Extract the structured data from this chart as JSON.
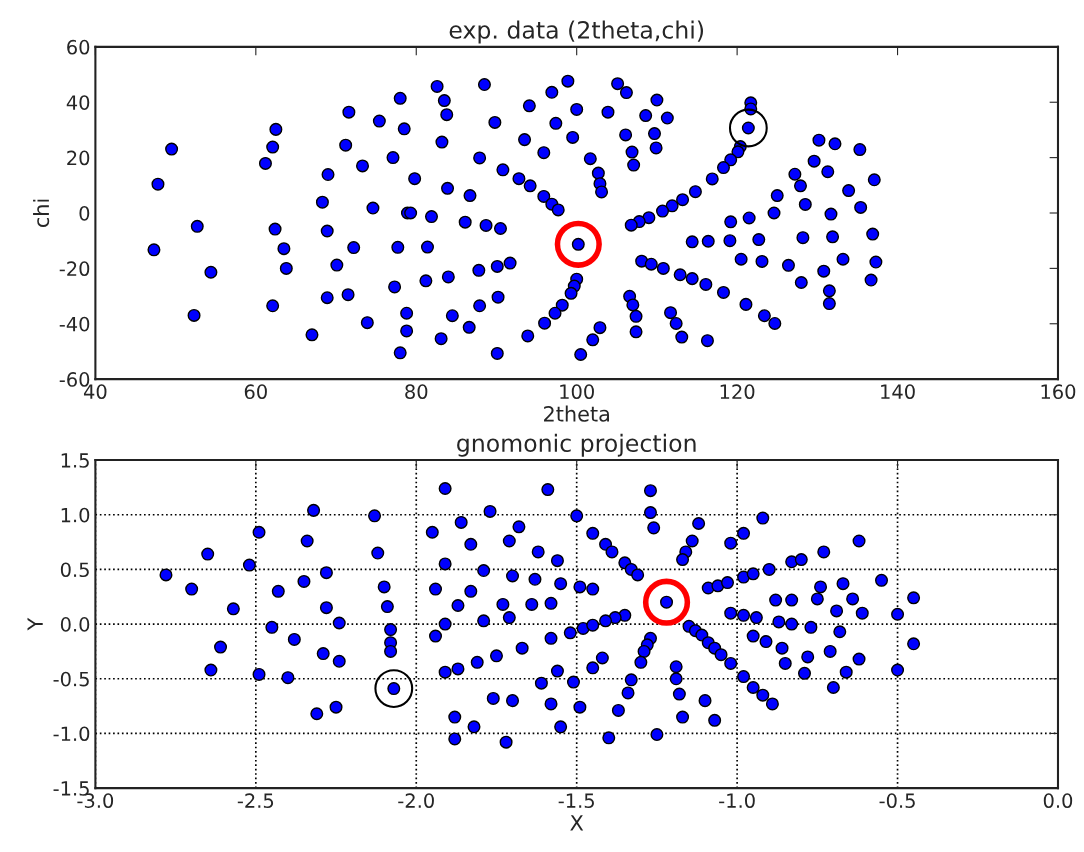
{
  "chart_data": [
    {
      "type": "scatter",
      "title": "exp. data (2theta,chi)",
      "xlabel": "2theta",
      "ylabel": "chi",
      "xlim": [
        40,
        160
      ],
      "ylim": [
        -60,
        60
      ],
      "xticks": [
        40,
        60,
        80,
        100,
        120,
        140,
        160
      ],
      "yticks": [
        -60,
        -40,
        -20,
        0,
        20,
        40,
        60
      ],
      "grid": false,
      "marker": "circle",
      "series": [
        {
          "color": "#0000ff",
          "x": [
            49.5,
            47.8,
            52.7,
            47.3,
            54.4,
            52.3,
            62.5,
            62.1,
            61.2,
            62.4,
            63.5,
            63.8,
            62.1,
            71.6,
            71.2,
            75.4,
            69.0,
            73.3,
            68.3,
            68.9,
            74.6,
            72.2,
            70.1,
            68.9,
            71.5,
            67.0,
            73.9,
            78.0,
            78.5,
            77.1,
            79.8,
            78.9,
            79.3,
            77.7,
            77.3,
            78.8,
            78.8,
            78.0,
            82.6,
            83.5,
            83.8,
            83.2,
            83.9,
            81.9,
            81.4,
            81.2,
            84.0,
            84.5,
            83.1,
            88.5,
            89.8,
            87.9,
            90.8,
            86.7,
            86.1,
            88.7,
            90.5,
            91.7,
            90.1,
            87.8,
            87.9,
            90.2,
            86.6,
            93.9,
            90.1,
            94.1,
            93.5,
            92.8,
            94.2,
            95.9,
            95.9,
            96.9,
            97.7,
            96.9,
            97.4,
            98.9,
            99.5,
            98.2,
            97.3,
            96.0,
            100.0,
            100.2,
            100.0,
            99.7,
            99.3,
            100.5,
            105.1,
            106.2,
            110.0,
            103.9,
            108.6,
            111.3,
            106.1,
            109.7,
            106.9,
            109.9,
            107.1,
            101.7,
            102.7,
            102.9,
            103.1,
            121.7,
            121.7,
            121.4,
            120.4,
            120.1,
            119.2,
            118.3,
            116.9,
            114.8,
            113.2,
            111.9,
            110.7,
            109.0,
            107.8,
            106.8,
            108.1,
            109.3,
            110.8,
            112.9,
            114.4,
            116.1,
            118.3,
            121.1,
            123.4,
            124.7,
            106.6,
            107.0,
            107.4,
            107.4,
            102.9,
            102.0,
            111.7,
            112.4,
            113.1,
            116.3,
            114.4,
            116.4,
            119.1,
            119.2,
            121.5,
            122.7,
            120.5,
            123.1,
            124.6,
            125.0,
            127.2,
            127.9,
            128.5,
            129.6,
            130.2,
            132.2,
            131.3,
            135.3,
            137.1,
            133.9,
            135.4,
            131.7,
            128.2,
            131.9,
            136.9,
            126.4,
            128.0,
            130.8,
            133.2,
            137.3,
            136.7,
            131.5,
            131.5
          ],
          "values": [
            23.1,
            10.4,
            -4.8,
            -13.3,
            -21.4,
            -37.0,
            30.2,
            23.8,
            17.9,
            -5.8,
            -12.9,
            -20.0,
            -33.5,
            36.4,
            24.5,
            33.2,
            13.9,
            17.0,
            3.9,
            -6.5,
            1.8,
            -12.5,
            -18.8,
            -30.6,
            -29.5,
            -44.0,
            -39.6,
            41.4,
            30.4,
            20.0,
            12.4,
            0.0,
            0.0,
            -12.4,
            -26.7,
            -36.2,
            -42.6,
            -50.5,
            45.7,
            40.6,
            35.5,
            25.6,
            8.9,
            -1.3,
            -12.3,
            -24.5,
            -23.1,
            -37.1,
            -45.4,
            46.4,
            32.7,
            19.9,
            15.6,
            6.3,
            -3.3,
            -4.5,
            -5.6,
            -18.1,
            -19.3,
            -20.7,
            -33.5,
            -30.4,
            -41.3,
            -44.4,
            -50.7,
            38.7,
            26.5,
            12.4,
            9.8,
            21.8,
            6.0,
            3.2,
            1.1,
            43.6,
            32.4,
            47.6,
            27.3,
            -33.3,
            -36.2,
            -39.8,
            37.4,
            -11.3,
            -23.9,
            -26.4,
            -29.0,
            -51.1,
            46.7,
            43.5,
            40.8,
            36.4,
            35.2,
            34.3,
            28.2,
            28.7,
            22.0,
            23.5,
            17.3,
            19.6,
            14.4,
            10.6,
            7.6,
            39.8,
            37.6,
            30.7,
            24.0,
            22.1,
            19.2,
            16.4,
            12.3,
            7.7,
            4.8,
            2.6,
            0.7,
            -1.7,
            -3.1,
            -4.4,
            -17.4,
            -18.5,
            -20.0,
            -22.3,
            -23.7,
            -25.8,
            -28.7,
            -33.0,
            -37.1,
            -39.9,
            -30.1,
            -33.2,
            -37.3,
            -42.9,
            -41.4,
            -45.8,
            -36.0,
            -39.9,
            -44.8,
            -46.1,
            -10.4,
            -10.2,
            -10.0,
            -3.2,
            -1.8,
            -9.6,
            -16.7,
            -17.5,
            0.0,
            6.3,
            14.0,
            9.8,
            3.1,
            18.7,
            26.3,
            25.0,
            14.9,
            22.9,
            12.0,
            8.1,
            2.0,
            -0.4,
            -8.9,
            -8.6,
            -7.6,
            -18.9,
            -25.1,
            -21.0,
            -16.7,
            -17.7,
            -24.2,
            -28.1,
            -32.7
          ]
        },
        {
          "color": "#ff0000",
          "x": [
            100.2
          ],
          "values": [
            -11.3
          ]
        },
        {
          "color": "#000000",
          "x": [
            121.4
          ],
          "values": [
            30.7
          ]
        }
      ]
    },
    {
      "type": "scatter",
      "title": "gnomonic projection",
      "xlabel": "X",
      "ylabel": "Y",
      "xlim": [
        -3.0,
        0.0
      ],
      "ylim": [
        -1.5,
        1.5
      ],
      "xticks": [
        {
          "value": -3.0,
          "label": "-3.0"
        },
        {
          "value": -2.5,
          "label": "-2.5"
        },
        {
          "value": -2.0,
          "label": "-2.0"
        },
        {
          "value": -1.5,
          "label": "-1.5"
        },
        {
          "value": -1.0,
          "label": "-1.0"
        },
        {
          "value": -0.5,
          "label": "-0.5"
        },
        {
          "value": 0.0,
          "label": "0.0"
        }
      ],
      "yticks": [
        {
          "value": -1.5,
          "label": "-1.5"
        },
        {
          "value": -1.0,
          "label": "-1.0"
        },
        {
          "value": -0.5,
          "label": "-0.5"
        },
        {
          "value": 0.0,
          "label": "0.0"
        },
        {
          "value": 0.5,
          "label": "0.5"
        },
        {
          "value": 1.0,
          "label": "1.0"
        },
        {
          "value": 1.5,
          "label": "1.5"
        }
      ],
      "grid": true,
      "marker": "circle",
      "series": [
        {
          "color": "#0000ff",
          "x": [
            -2.78,
            -2.7,
            -2.65,
            -2.52,
            -2.57,
            -2.61,
            -2.64,
            -2.49,
            -2.49,
            -2.45,
            -2.43,
            -2.4,
            -2.38,
            -2.35,
            -2.34,
            -2.32,
            -2.28,
            -2.28,
            -2.24,
            -2.29,
            -2.24,
            -2.31,
            -2.25,
            -2.13,
            -2.12,
            -2.1,
            -2.09,
            -2.08,
            -2.08,
            -2.08,
            -2.07,
            -1.91,
            -1.95,
            -1.91,
            -1.94,
            -1.91,
            -1.94,
            -1.91,
            -1.87,
            -1.88,
            -1.88,
            -1.86,
            -1.83,
            -1.77,
            -1.79,
            -1.83,
            -1.87,
            -1.79,
            -1.81,
            -1.82,
            -1.76,
            -1.75,
            -1.71,
            -1.73,
            -1.71,
            -1.68,
            -1.7,
            -1.72,
            -1.7,
            -1.67,
            -1.64,
            -1.63,
            -1.62,
            -1.59,
            -1.56,
            -1.55,
            -1.58,
            -1.58,
            -1.61,
            -1.56,
            -1.52,
            -1.58,
            -1.55,
            -1.5,
            -1.49,
            -1.48,
            -1.51,
            -1.49,
            -1.27,
            -1.27,
            -1.26,
            -1.45,
            -1.41,
            -1.39,
            -1.35,
            -1.33,
            -1.31,
            -1.45,
            -1.22,
            -1.35,
            -1.38,
            -1.41,
            -1.45,
            -1.12,
            -1.14,
            -1.16,
            -1.17,
            -1.02,
            -0.98,
            -0.92,
            -1.09,
            -1.06,
            -1.03,
            -0.98,
            -0.95,
            -0.9,
            -0.83,
            -0.8,
            -0.73,
            -0.62,
            -0.55,
            -0.45,
            -0.5,
            -0.45,
            -0.5,
            -1.02,
            -0.98,
            -0.94,
            -0.88,
            -0.83,
            -0.75,
            -0.74,
            -0.67,
            -0.64,
            -0.69,
            -0.61,
            -0.87,
            -0.83,
            -0.77,
            -0.68,
            -0.95,
            -0.91,
            -0.86,
            -0.85,
            -0.78,
            -0.71,
            -0.62,
            -0.79,
            -0.66,
            -0.7,
            -1.15,
            -1.13,
            -1.11,
            -1.09,
            -1.07,
            -1.05,
            -1.02,
            -0.98,
            -0.95,
            -0.92,
            -0.89,
            -1.27,
            -1.28,
            -1.29,
            -1.3,
            -1.33,
            -1.34,
            -1.37,
            -1.4,
            -1.42,
            -1.45,
            -1.19,
            -1.19,
            -1.18,
            -1.17,
            -1.25,
            -1.1,
            -1.07
          ],
          "values": [
            0.45,
            0.32,
            0.64,
            0.54,
            0.14,
            -0.21,
            -0.42,
            0.84,
            -0.46,
            -0.03,
            0.3,
            -0.49,
            -0.14,
            0.39,
            0.76,
            1.04,
            0.47,
            0.15,
            0.01,
            -0.27,
            -0.34,
            -0.82,
            -0.76,
            0.99,
            0.65,
            0.34,
            0.16,
            -0.05,
            -0.17,
            -0.25,
            -0.59,
            1.24,
            0.84,
            0.55,
            0.32,
            0.0,
            -0.11,
            -0.44,
            -0.41,
            -0.85,
            -1.05,
            0.93,
            0.73,
            1.03,
            0.49,
            0.3,
            0.17,
            0.03,
            -0.35,
            -0.94,
            -0.68,
            -0.29,
            0.06,
            0.18,
            0.76,
            0.89,
            0.44,
            -1.08,
            -0.7,
            -0.22,
            0.18,
            0.41,
            0.66,
            1.23,
            0.58,
            0.37,
            0.19,
            -0.13,
            -0.54,
            -0.43,
            -0.08,
            -0.73,
            -0.94,
            0.99,
            0.34,
            -0.04,
            -0.53,
            -0.76,
            1.22,
            1.02,
            0.88,
            0.83,
            0.73,
            0.66,
            0.56,
            0.5,
            0.45,
            0.32,
            0.2,
            0.08,
            0.06,
            0.03,
            -0.01,
            0.92,
            0.76,
            0.66,
            0.59,
            0.74,
            0.83,
            0.97,
            0.33,
            0.35,
            0.38,
            0.43,
            0.46,
            0.5,
            0.57,
            0.59,
            0.66,
            0.76,
            0.4,
            0.24,
            0.09,
            -0.18,
            -0.42,
            0.1,
            0.08,
            0.06,
            0.22,
            0.22,
            0.23,
            0.34,
            0.37,
            0.23,
            0.12,
            0.1,
            0.02,
            0.0,
            -0.03,
            -0.07,
            -0.11,
            -0.16,
            -0.22,
            -0.36,
            -0.3,
            -0.25,
            -0.32,
            -0.45,
            -0.44,
            -0.58,
            -0.02,
            -0.06,
            -0.1,
            -0.17,
            -0.22,
            -0.28,
            -0.36,
            -0.48,
            -0.58,
            -0.65,
            -0.73,
            -0.13,
            -0.19,
            -0.25,
            -0.35,
            -0.51,
            -0.63,
            -0.79,
            -1.04,
            -0.31,
            -0.4,
            -0.39,
            -0.5,
            -0.64,
            -0.85,
            -1.01,
            -0.7,
            -0.88
          ]
        },
        {
          "color": "#ff0000",
          "x": [
            -1.22
          ],
          "values": [
            0.2
          ]
        },
        {
          "color": "#000000",
          "x": [
            -2.07
          ],
          "values": [
            -0.59
          ]
        }
      ]
    }
  ]
}
